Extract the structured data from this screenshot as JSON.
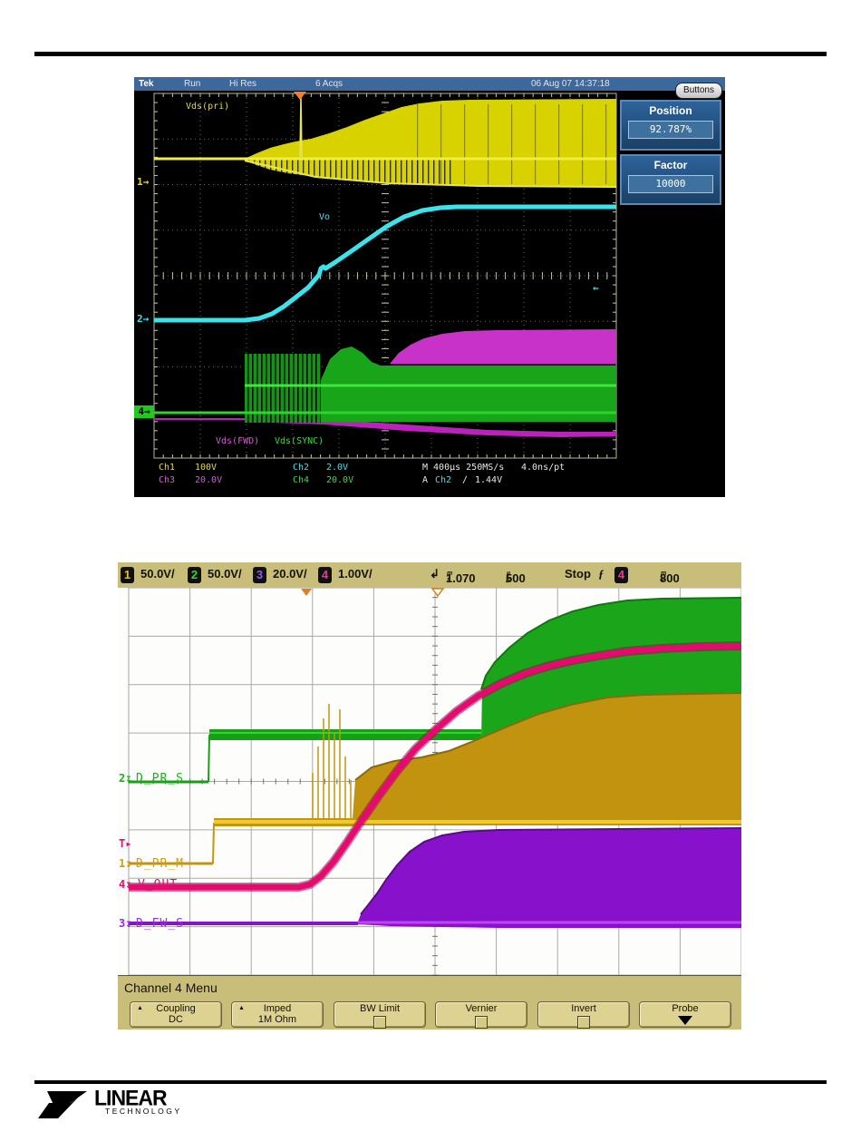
{
  "colors": {
    "tek_ch1_yellow": "#d8d300",
    "tek_ch2_cyan": "#3ae4ec",
    "tek_ch3_magenta": "#c832c8",
    "tek_ch4_green": "#19a519",
    "agl_ch1_orange": "#c2930f",
    "agl_ch2_green": "#1ba51b",
    "agl_ch3_purple": "#8812cc",
    "agl_ch4_pink": "#e60a70",
    "tek_titlebar_blue": "#3d689c",
    "agl_khaki": "#c9bd7a"
  },
  "tek": {
    "titlebar": {
      "brand": "Tek",
      "run": "Run",
      "mode": "Hi Res",
      "acqs": "6 Acqs",
      "datetime": "06 Aug 07 14:37:18"
    },
    "buttons_label": "Buttons",
    "panel": {
      "position_label": "Position",
      "position_value": "92.787%",
      "factor_label": "Factor",
      "factor_value": "10000"
    },
    "labels": {
      "ch1": "Vds(pri)",
      "ch2": "Vo",
      "ch3": "Vds(FWD)",
      "ch4": "Vds(SYNC)"
    },
    "markers": {
      "ch1": "1→",
      "ch2": "2→",
      "ch4": "4→",
      "trig_arrow": "←"
    },
    "readout": {
      "ch1": "Ch1",
      "ch1_v": "100V",
      "ch2": "Ch2",
      "ch2_v": "2.0V",
      "ch3": "Ch3",
      "ch3_v": "20.0V",
      "ch4": "Ch4",
      "ch4_v": "20.0V",
      "time": "M 400µs 250MS/s",
      "rate": "4.0ns/pt",
      "trig_a": "A",
      "trig_src": "Ch2",
      "trig_slope": "∕",
      "trig_level": "1.44V"
    },
    "traces": {
      "yfill": "122,90 135,84 150,78 165,74 178,71 195,68 215,62 235,55 255,47 275,40 295,33 315,29 340,26 370,25 532,24 532,120 450,121 380,120 330,119 280,116 240,113 200,110 170,106 150,102 135,97 122,92",
      "ybase": "22,90 532,90",
      "ybot": "122,92 200,110 280,117 380,120 532,121",
      "yspike": "183,88 184,20 185,88",
      "cyan": "22,268 122,268 138,266 152,261 165,253 178,243 192,232 204,218 206,211 209,209 211,211 222,204 238,193 258,179 278,165 298,154 318,147 338,144 356,143 532,143",
      "mdome": "282,316 292,304 305,295 320,288 340,283 365,280 400,279 532,278 532,316",
      "mlow": "122,374 210,377 300,383 390,389 470,391 532,391 532,396 470,397 390,395 300,390 210,383 122,380",
      "mleft": "22,377 122,377",
      "gfill": "206,362 206,334 216,311 228,300 240,297 252,304 262,314 272,318 532,318 532,380 206,380",
      "gline1": "122,340 532,340",
      "gline2": "22,370 532,370"
    }
  },
  "agilent": {
    "header": {
      "ch": [
        {
          "n": "1",
          "v": "50.0V/"
        },
        {
          "n": "2",
          "v": "50.0V/"
        },
        {
          "n": "3",
          "v": "20.0V/"
        },
        {
          "n": "4",
          "v": "1.00V/"
        }
      ],
      "delay_icon": "↲",
      "delay": "1.070",
      "delay_u1": "m",
      "delay_u2": "s",
      "tb": "500",
      "tb_u1": "µ",
      "tb_u2": "s",
      "tb_slash": "/",
      "status": "Stop",
      "edge_icon": "ƒ",
      "trig_ch": "4",
      "trig": "800",
      "trig_u1": "m",
      "trig_u2": "V"
    },
    "gnd": "↧",
    "markers": {
      "m2": {
        "n": "2",
        "label": "D_PR_S"
      },
      "mt": {
        "n": "T▸"
      },
      "m1": {
        "n": "1",
        "label": "D_PR_M"
      },
      "m4": {
        "n": "4",
        "label": "V_OUT"
      },
      "m3": {
        "n": "3",
        "label": "D_FW_S"
      }
    },
    "menu": {
      "title": "Channel 4 Menu",
      "buttons": [
        {
          "l1": "Coupling",
          "l2": "DC"
        },
        {
          "l1": "Imped",
          "l2": "1M Ohm"
        },
        {
          "l1": "BW Limit"
        },
        {
          "l1": "Vernier"
        },
        {
          "l1": "Invert"
        },
        {
          "l1": "Probe"
        }
      ]
    },
    "traces": {
      "gbase": "12,242 100,242",
      "gstep": "100,242 101,190",
      "gbright": "101,188 401,188",
      "genv": "401,196 402,140 406,125 416,110 432,94 452,78 476,64 502,54 530,47 562,42 600,40 688,39 688,144 640,147 592,154 552,164 516,177 476,196 440,207 414,206",
      "gtop": "401,140 406,125 416,110 432,94 452,78 476,64 502,54 530,47 562,42 600,40 688,39",
      "obase": "12,332 105,332",
      "ostep": "105,332 106,287",
      "oenv": "259,282 262,240 280,226 305,219 335,215 365,208 395,196 430,181 465,167 500,157 540,149 580,146 688,144 688,290 262,290",
      "otop": "262,240 280,226 305,219 335,215 365,208 395,196 430,181 465,167 500,157 540,149 580,146 688,144",
      "obright": "106,286 688,286",
      "spk0": "215,283 215,232",
      "spk1": "221,283 221,203",
      "spk2": "227,283 227,172",
      "spk3": "233,283 233,156",
      "spk4": "239,283 239,188",
      "spk5": "245,283 245,162",
      "spk6": "251,283 251,214",
      "spk7": "257,283 257,240",
      "pink": "12,358 200,358 212,355 224,346 238,330 252,310 268,286 288,257 308,230 328,206 350,185 374,164 398,147 424,133 450,122 476,114 502,108 530,103 562,98 600,95 644,93 688,92",
      "pbase": "12,398 265,398",
      "penv": "265,396 268,388 276,378 286,365 296,350 308,334 322,319 338,308 358,301 382,297 420,295 688,293 688,403 420,403 300,401 265,399",
      "ptop": "268,388 276,378 286,365 296,350 308,334 322,319 338,308 358,301 382,297 420,295 688,293",
      "pbright": "265,397 688,397"
    }
  },
  "footer": {
    "brand_top": "LINEAR",
    "brand_bottom": "TECHNOLOGY"
  }
}
